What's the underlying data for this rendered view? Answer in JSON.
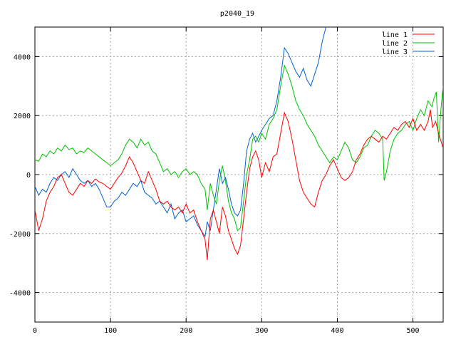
{
  "chart_data": {
    "type": "line",
    "title": "p2040_19",
    "xlim": [
      0,
      540
    ],
    "ylim": [
      -5000,
      5000
    ],
    "x_ticks": [
      0,
      100,
      200,
      300,
      400,
      500
    ],
    "y_ticks": [
      -4000,
      -2000,
      0,
      2000,
      4000
    ],
    "grid": true,
    "legend_position": "top-right",
    "series": [
      {
        "name": "line 1",
        "color": "#ff0000",
        "points": [
          [
            0,
            -1200
          ],
          [
            5,
            -1900
          ],
          [
            10,
            -1500
          ],
          [
            15,
            -900
          ],
          [
            20,
            -600
          ],
          [
            25,
            -400
          ],
          [
            30,
            -100
          ],
          [
            35,
            0
          ],
          [
            40,
            -300
          ],
          [
            45,
            -600
          ],
          [
            50,
            -700
          ],
          [
            55,
            -500
          ],
          [
            60,
            -300
          ],
          [
            65,
            -400
          ],
          [
            70,
            -200
          ],
          [
            75,
            -300
          ],
          [
            80,
            -150
          ],
          [
            85,
            -250
          ],
          [
            90,
            -300
          ],
          [
            95,
            -400
          ],
          [
            100,
            -500
          ],
          [
            105,
            -300
          ],
          [
            110,
            -100
          ],
          [
            115,
            50
          ],
          [
            120,
            300
          ],
          [
            125,
            600
          ],
          [
            130,
            400
          ],
          [
            135,
            100
          ],
          [
            140,
            -200
          ],
          [
            145,
            -300
          ],
          [
            150,
            100
          ],
          [
            155,
            -200
          ],
          [
            160,
            -500
          ],
          [
            165,
            -900
          ],
          [
            170,
            -1000
          ],
          [
            175,
            -900
          ],
          [
            180,
            -1100
          ],
          [
            185,
            -1200
          ],
          [
            190,
            -1100
          ],
          [
            195,
            -1300
          ],
          [
            200,
            -1000
          ],
          [
            205,
            -1300
          ],
          [
            210,
            -1200
          ],
          [
            215,
            -1600
          ],
          [
            220,
            -1900
          ],
          [
            225,
            -2200
          ],
          [
            228,
            -2900
          ],
          [
            232,
            -1500
          ],
          [
            236,
            -1200
          ],
          [
            240,
            -1600
          ],
          [
            244,
            -2000
          ],
          [
            248,
            -1100
          ],
          [
            252,
            -1400
          ],
          [
            256,
            -1900
          ],
          [
            260,
            -2200
          ],
          [
            264,
            -2500
          ],
          [
            268,
            -2700
          ],
          [
            272,
            -2400
          ],
          [
            276,
            -1500
          ],
          [
            280,
            -600
          ],
          [
            284,
            200
          ],
          [
            288,
            600
          ],
          [
            292,
            800
          ],
          [
            296,
            500
          ],
          [
            300,
            -100
          ],
          [
            305,
            400
          ],
          [
            310,
            100
          ],
          [
            315,
            600
          ],
          [
            320,
            700
          ],
          [
            325,
            1400
          ],
          [
            330,
            2100
          ],
          [
            335,
            1800
          ],
          [
            340,
            1200
          ],
          [
            345,
            500
          ],
          [
            350,
            -200
          ],
          [
            355,
            -600
          ],
          [
            360,
            -800
          ],
          [
            365,
            -1000
          ],
          [
            370,
            -1100
          ],
          [
            375,
            -600
          ],
          [
            380,
            -200
          ],
          [
            385,
            0
          ],
          [
            390,
            300
          ],
          [
            395,
            500
          ],
          [
            400,
            200
          ],
          [
            405,
            -100
          ],
          [
            410,
            -200
          ],
          [
            415,
            -100
          ],
          [
            420,
            100
          ],
          [
            425,
            500
          ],
          [
            430,
            700
          ],
          [
            435,
            1000
          ],
          [
            440,
            1200
          ],
          [
            445,
            1300
          ],
          [
            450,
            1200
          ],
          [
            455,
            1100
          ],
          [
            460,
            1300
          ],
          [
            465,
            1200
          ],
          [
            470,
            1400
          ],
          [
            475,
            1600
          ],
          [
            480,
            1500
          ],
          [
            485,
            1700
          ],
          [
            490,
            1800
          ],
          [
            495,
            1600
          ],
          [
            500,
            1900
          ],
          [
            505,
            1500
          ],
          [
            510,
            1700
          ],
          [
            515,
            1500
          ],
          [
            520,
            1800
          ],
          [
            523,
            2200
          ],
          [
            526,
            1600
          ],
          [
            530,
            1800
          ],
          [
            535,
            1300
          ],
          [
            540,
            900
          ]
        ]
      },
      {
        "name": "line 2",
        "color": "#00c000",
        "points": [
          [
            0,
            500
          ],
          [
            5,
            450
          ],
          [
            10,
            700
          ],
          [
            15,
            600
          ],
          [
            20,
            800
          ],
          [
            25,
            700
          ],
          [
            30,
            900
          ],
          [
            35,
            800
          ],
          [
            40,
            1000
          ],
          [
            45,
            850
          ],
          [
            50,
            900
          ],
          [
            55,
            700
          ],
          [
            60,
            800
          ],
          [
            65,
            750
          ],
          [
            70,
            900
          ],
          [
            75,
            800
          ],
          [
            80,
            700
          ],
          [
            85,
            600
          ],
          [
            90,
            500
          ],
          [
            95,
            400
          ],
          [
            100,
            300
          ],
          [
            105,
            400
          ],
          [
            110,
            500
          ],
          [
            115,
            700
          ],
          [
            120,
            1000
          ],
          [
            125,
            1200
          ],
          [
            130,
            1100
          ],
          [
            135,
            900
          ],
          [
            140,
            1200
          ],
          [
            145,
            1000
          ],
          [
            150,
            1100
          ],
          [
            155,
            800
          ],
          [
            160,
            700
          ],
          [
            165,
            400
          ],
          [
            170,
            100
          ],
          [
            175,
            200
          ],
          [
            180,
            0
          ],
          [
            185,
            100
          ],
          [
            190,
            -100
          ],
          [
            195,
            100
          ],
          [
            200,
            200
          ],
          [
            205,
            0
          ],
          [
            210,
            100
          ],
          [
            215,
            0
          ],
          [
            220,
            -300
          ],
          [
            225,
            -500
          ],
          [
            228,
            -1200
          ],
          [
            232,
            -300
          ],
          [
            236,
            -700
          ],
          [
            240,
            -1000
          ],
          [
            244,
            -200
          ],
          [
            248,
            300
          ],
          [
            252,
            -200
          ],
          [
            256,
            -900
          ],
          [
            260,
            -1300
          ],
          [
            264,
            -1500
          ],
          [
            268,
            -1900
          ],
          [
            272,
            -1800
          ],
          [
            276,
            -900
          ],
          [
            280,
            0
          ],
          [
            284,
            500
          ],
          [
            288,
            1200
          ],
          [
            292,
            1300
          ],
          [
            296,
            1100
          ],
          [
            300,
            1400
          ],
          [
            305,
            1200
          ],
          [
            310,
            1700
          ],
          [
            315,
            1900
          ],
          [
            320,
            2200
          ],
          [
            325,
            3000
          ],
          [
            330,
            3700
          ],
          [
            335,
            3400
          ],
          [
            340,
            3000
          ],
          [
            345,
            2500
          ],
          [
            350,
            2200
          ],
          [
            355,
            2000
          ],
          [
            360,
            1700
          ],
          [
            365,
            1500
          ],
          [
            370,
            1300
          ],
          [
            375,
            1000
          ],
          [
            380,
            800
          ],
          [
            385,
            600
          ],
          [
            390,
            400
          ],
          [
            395,
            600
          ],
          [
            400,
            500
          ],
          [
            405,
            800
          ],
          [
            410,
            1100
          ],
          [
            415,
            900
          ],
          [
            420,
            500
          ],
          [
            425,
            400
          ],
          [
            430,
            600
          ],
          [
            435,
            900
          ],
          [
            440,
            1000
          ],
          [
            445,
            1300
          ],
          [
            450,
            1500
          ],
          [
            455,
            1400
          ],
          [
            460,
            1200
          ],
          [
            462,
            -200
          ],
          [
            465,
            100
          ],
          [
            470,
            800
          ],
          [
            475,
            1200
          ],
          [
            480,
            1400
          ],
          [
            485,
            1500
          ],
          [
            490,
            1700
          ],
          [
            495,
            1800
          ],
          [
            500,
            1500
          ],
          [
            505,
            1900
          ],
          [
            510,
            2200
          ],
          [
            515,
            2000
          ],
          [
            520,
            2500
          ],
          [
            525,
            2300
          ],
          [
            528,
            2600
          ],
          [
            531,
            2800
          ],
          [
            534,
            1100
          ],
          [
            537,
            2200
          ],
          [
            540,
            3000
          ]
        ]
      },
      {
        "name": "line 3",
        "color": "#0060d0",
        "points": [
          [
            0,
            -400
          ],
          [
            5,
            -700
          ],
          [
            10,
            -500
          ],
          [
            15,
            -600
          ],
          [
            20,
            -300
          ],
          [
            25,
            -100
          ],
          [
            30,
            -200
          ],
          [
            35,
            0
          ],
          [
            40,
            100
          ],
          [
            45,
            -100
          ],
          [
            50,
            200
          ],
          [
            55,
            0
          ],
          [
            60,
            -200
          ],
          [
            65,
            -300
          ],
          [
            70,
            -200
          ],
          [
            75,
            -400
          ],
          [
            80,
            -300
          ],
          [
            85,
            -500
          ],
          [
            90,
            -800
          ],
          [
            95,
            -1100
          ],
          [
            100,
            -1100
          ],
          [
            105,
            -900
          ],
          [
            110,
            -800
          ],
          [
            115,
            -600
          ],
          [
            120,
            -700
          ],
          [
            125,
            -500
          ],
          [
            130,
            -300
          ],
          [
            135,
            -400
          ],
          [
            140,
            -200
          ],
          [
            145,
            -600
          ],
          [
            150,
            -700
          ],
          [
            155,
            -800
          ],
          [
            160,
            -1000
          ],
          [
            165,
            -900
          ],
          [
            170,
            -1100
          ],
          [
            175,
            -1300
          ],
          [
            180,
            -1000
          ],
          [
            185,
            -1500
          ],
          [
            190,
            -1300
          ],
          [
            195,
            -1200
          ],
          [
            200,
            -1600
          ],
          [
            205,
            -1500
          ],
          [
            210,
            -1400
          ],
          [
            215,
            -1700
          ],
          [
            220,
            -1900
          ],
          [
            225,
            -2100
          ],
          [
            228,
            -1600
          ],
          [
            232,
            -1900
          ],
          [
            236,
            -1200
          ],
          [
            240,
            -500
          ],
          [
            244,
            200
          ],
          [
            248,
            -300
          ],
          [
            252,
            -100
          ],
          [
            256,
            -500
          ],
          [
            260,
            -1000
          ],
          [
            264,
            -1300
          ],
          [
            268,
            -1400
          ],
          [
            272,
            -1200
          ],
          [
            276,
            -300
          ],
          [
            280,
            800
          ],
          [
            284,
            1200
          ],
          [
            288,
            1400
          ],
          [
            292,
            1100
          ],
          [
            296,
            1300
          ],
          [
            300,
            1500
          ],
          [
            305,
            1700
          ],
          [
            310,
            1900
          ],
          [
            315,
            2000
          ],
          [
            320,
            2500
          ],
          [
            325,
            3300
          ],
          [
            330,
            4300
          ],
          [
            335,
            4100
          ],
          [
            340,
            3800
          ],
          [
            345,
            3500
          ],
          [
            350,
            3300
          ],
          [
            355,
            3600
          ],
          [
            360,
            3200
          ],
          [
            365,
            3000
          ],
          [
            370,
            3400
          ],
          [
            375,
            3800
          ],
          [
            380,
            4500
          ],
          [
            385,
            5000
          ]
        ]
      }
    ]
  }
}
